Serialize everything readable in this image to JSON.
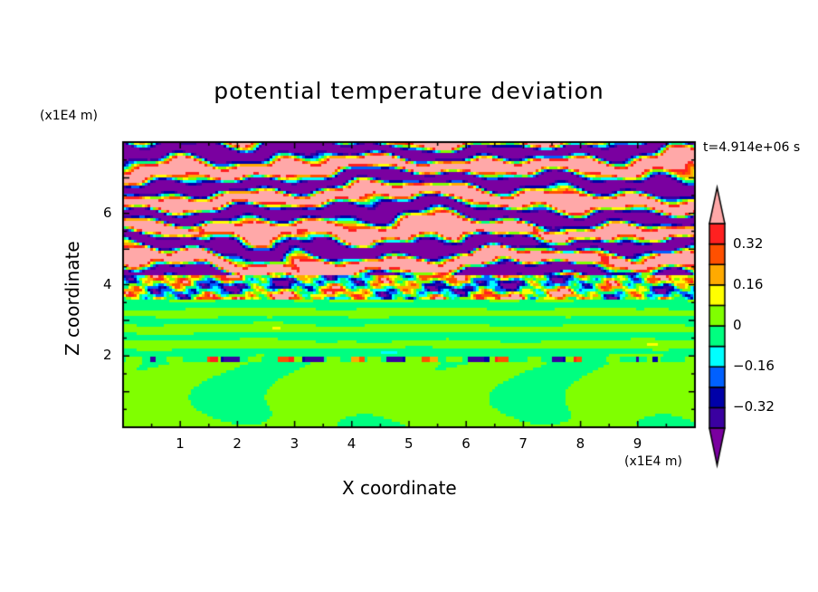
{
  "chart_data": {
    "type": "heatmap",
    "title": "potential temperature deviation",
    "xlabel": "X coordinate",
    "ylabel": "Z coordinate",
    "x_unit": "(x1E4 m)",
    "y_unit": "(x1E4 m)",
    "annotation": "t=4.914e+06 s",
    "xlim": [
      0,
      10
    ],
    "ylim": [
      0,
      8
    ],
    "xticks": [
      "1",
      "2",
      "3",
      "4",
      "5",
      "6",
      "7",
      "8",
      "9"
    ],
    "yticks": [
      "2",
      "4",
      "6"
    ],
    "colorbar": {
      "levels": [
        -0.4,
        -0.32,
        -0.24,
        -0.16,
        -0.08,
        0,
        0.08,
        0.16,
        0.24,
        0.32,
        0.4
      ],
      "tick_labels": [
        "0.32",
        "0.16",
        "0",
        "−0.16",
        "−0.32"
      ],
      "tick_values": [
        0.32,
        0.16,
        0,
        -0.16,
        -0.32
      ],
      "colors": [
        "#7a00a0",
        "#3a00a0",
        "#0000a8",
        "#0060ff",
        "#00ffff",
        "#00ff80",
        "#80ff00",
        "#ffff00",
        "#ffaa00",
        "#ff5000",
        "#ff2020",
        "#ffa8a8"
      ],
      "extend": "both"
    },
    "description_regions": [
      {
        "z_range": [
          4.3,
          8
        ],
        "pattern": "alternating layers of >0.4 and <-0.4"
      },
      {
        "z_range": [
          3.6,
          4.6
        ],
        "pattern": "mixed values -0.4..0.4"
      },
      {
        "z_range": [
          0,
          3.6
        ],
        "pattern": "values near 0 (-0.08..0.08)"
      }
    ]
  }
}
